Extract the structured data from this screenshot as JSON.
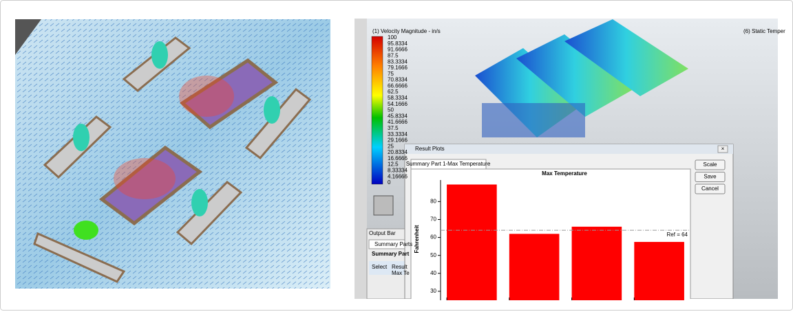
{
  "cfd_view": {
    "legend_title": "(1) Velocity Magnitude - in/s",
    "right_title": "(6) Static Temper",
    "legend_labels": [
      "100",
      "95.8334",
      "91.6666",
      "87.5",
      "83.3334",
      "79.1666",
      "75",
      "70.8334",
      "66.6666",
      "62.5",
      "58.3334",
      "54.1666",
      "50",
      "45.8334",
      "41.6666",
      "37.5",
      "33.3334",
      "29.1666",
      "25",
      "20.8334",
      "16.6666",
      "12.5",
      "8.33334",
      "4.16666",
      "0"
    ]
  },
  "output_bar": {
    "title": "Output Bar",
    "tab": "Summary Parts",
    "heading": "Summary Part",
    "columns": [
      "Select",
      "Result"
    ],
    "row": "Max Te"
  },
  "result_dialog": {
    "title": "Result Plots",
    "tab": "Summary Part 1-Max Temperature",
    "buttons": [
      "Scale",
      "Save",
      "Cancel"
    ]
  },
  "chart_data": {
    "type": "bar",
    "title": "Max Temperature",
    "y_label": "Fahrenheit",
    "categories": [
      null,
      null,
      null,
      null
    ],
    "values": [
      89.5,
      62,
      66,
      57.5
    ],
    "color": "#ff0000",
    "ylim": [
      25,
      92
    ],
    "yticks": [
      30,
      40,
      50,
      60,
      70,
      80
    ],
    "ref_line": {
      "value": 64,
      "label": "Ref = 64"
    }
  }
}
